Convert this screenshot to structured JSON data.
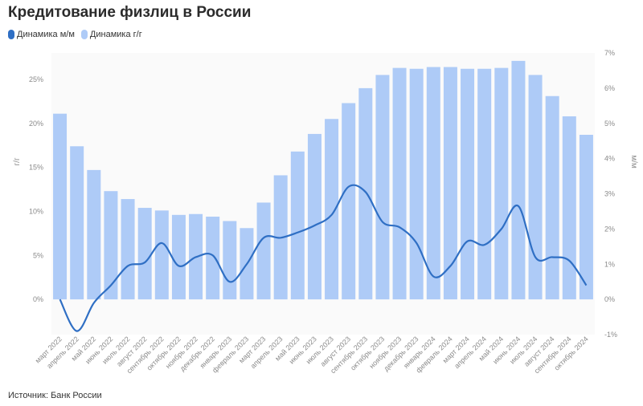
{
  "title": "Кредитование физлиц в России",
  "source": "Источник: Банк России",
  "chart_data": {
    "type": "bar",
    "categories": [
      "март 2022",
      "апрель 2022",
      "май 2022",
      "июнь 2022",
      "июль 2022",
      "август 2022",
      "сентябрь 2022",
      "октябрь 2022",
      "ноябрь 2022",
      "декабрь 2022",
      "январь 2023",
      "февраль 2023",
      "март 2023",
      "апрель 2023",
      "май 2023",
      "июнь 2023",
      "июль 2023",
      "август 2023",
      "сентябрь 2023",
      "октябрь 2023",
      "ноябрь 2023",
      "декабрь 2023",
      "январь 2024",
      "февраль 2024",
      "март 2024",
      "апрель 2024",
      "май 2024",
      "июнь 2024",
      "июль 2024",
      "август 2024",
      "сентябрь 2024",
      "октябрь 2024"
    ],
    "series": [
      {
        "name": "Динамика м/м",
        "type": "line",
        "axis": "right",
        "color": "#2f6fc4",
        "values": [
          0.0,
          -0.9,
          -0.1,
          0.4,
          0.95,
          1.05,
          1.6,
          0.95,
          1.2,
          1.25,
          0.5,
          1.0,
          1.75,
          1.75,
          1.9,
          2.1,
          2.4,
          3.2,
          3.05,
          2.2,
          2.05,
          1.6,
          0.65,
          0.95,
          1.65,
          1.55,
          2.0,
          2.65,
          1.2,
          1.2,
          1.1,
          0.4
        ]
      },
      {
        "name": "Динамика г/г",
        "type": "bar",
        "axis": "left",
        "color": "#aecbf7",
        "values": [
          21.1,
          17.4,
          14.7,
          12.3,
          11.4,
          10.4,
          10.1,
          9.6,
          9.7,
          9.4,
          8.9,
          8.1,
          11.0,
          14.1,
          16.8,
          18.8,
          20.5,
          22.3,
          24.0,
          25.5,
          26.3,
          26.2,
          26.4,
          26.4,
          26.2,
          26.2,
          26.3,
          27.1,
          25.5,
          23.1,
          20.8,
          18.7
        ]
      }
    ],
    "y_left": {
      "label": "г/г",
      "ticks": [
        0,
        5,
        10,
        15,
        20,
        25
      ],
      "suffix": "%",
      "range": [
        -4,
        28
      ]
    },
    "y_right": {
      "label": "м/м",
      "ticks": [
        -1,
        0,
        1,
        2,
        3,
        4,
        5,
        6,
        7
      ],
      "suffix": "%",
      "range": [
        -1,
        7
      ]
    },
    "grid": false,
    "legend_position": "top-left"
  }
}
